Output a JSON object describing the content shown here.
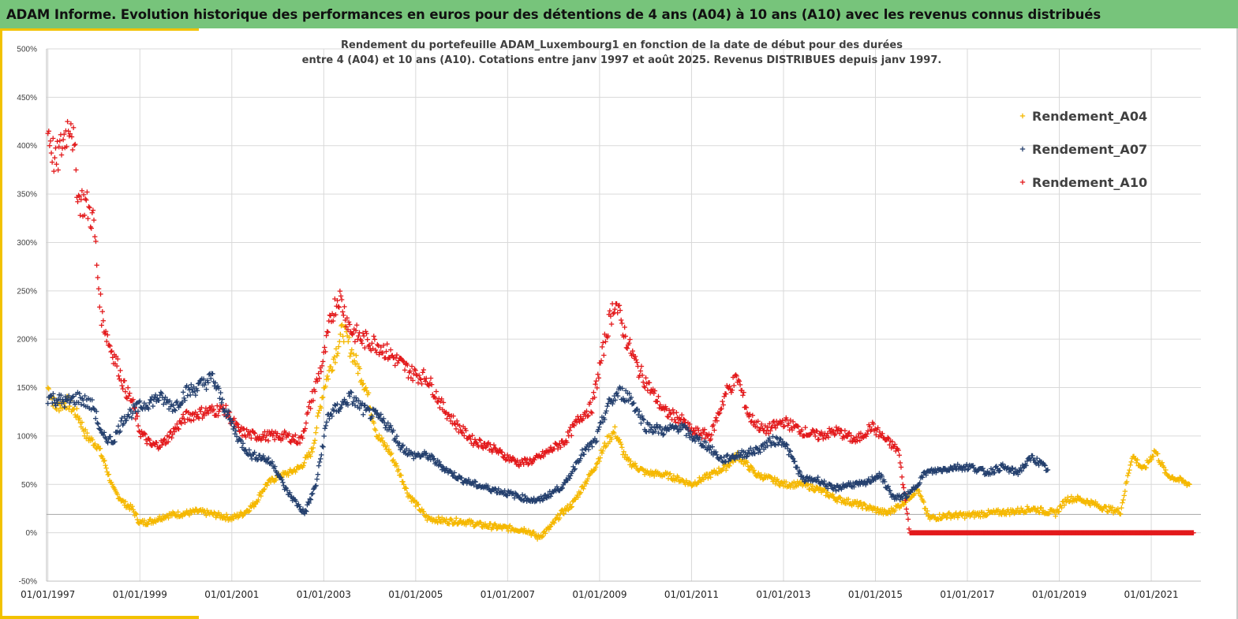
{
  "header": {
    "title": "ADAM Informe. Evolution historique des performances en euros pour des détentions de 4 ans (A04) à 10 ans (A10) avec les revenus connus distribués"
  },
  "colors": {
    "A04": "#f5b800",
    "A07": "#25406e",
    "A10": "#e31a1c",
    "banner": "#77c47b",
    "accent": "#f2c200"
  },
  "chart_data": {
    "type": "scatter",
    "title": "",
    "subtitle_lines": [
      "Rendement du portefeuille ADAM_Luxembourg1  en fonction de la date de début pour des durées",
      "entre 4 (A04) et 10 ans (A10). Cotations entre janv 1997 et août 2025. Revenus DISTRIBUES depuis janv 1997."
    ],
    "xlabel": "",
    "ylabel": "",
    "x_tick_labels": [
      "01/01/1997",
      "01/01/1999",
      "01/01/2001",
      "01/01/2003",
      "01/01/2005",
      "01/01/2007",
      "01/01/2009",
      "01/01/2011",
      "01/01/2013",
      "01/01/2015",
      "01/01/2017",
      "01/01/2019",
      "01/01/2021"
    ],
    "xlim": [
      "1997-01-01",
      "2022-01-01"
    ],
    "y_tick_labels": [
      "-50%",
      "0%",
      "50%",
      "100%",
      "150%",
      "200%",
      "250%",
      "300%",
      "350%",
      "400%",
      "450%",
      "500%"
    ],
    "ylim": [
      -50,
      500
    ],
    "y_unit": "%",
    "grid": true,
    "reference_line_y": 19,
    "legend_position": "top-right",
    "series": [
      {
        "name": "Rendement_A04",
        "color": "#f5b800",
        "points": [
          [
            "1997-01",
            150
          ],
          [
            "1997-03",
            130
          ],
          [
            "1997-06",
            135
          ],
          [
            "1997-09",
            120
          ],
          [
            "1997-11",
            100
          ],
          [
            "1998-02",
            90
          ],
          [
            "1998-04",
            70
          ],
          [
            "1998-06",
            45
          ],
          [
            "1998-09",
            30
          ],
          [
            "1998-11",
            25
          ],
          [
            "1999-01",
            10
          ],
          [
            "1999-04",
            12
          ],
          [
            "1999-08",
            18
          ],
          [
            "2000-01",
            20
          ],
          [
            "2000-04",
            22
          ],
          [
            "2000-07",
            20
          ],
          [
            "2001-01",
            15
          ],
          [
            "2001-04",
            20
          ],
          [
            "2001-07",
            30
          ],
          [
            "2001-10",
            50
          ],
          [
            "2002-01",
            58
          ],
          [
            "2002-04",
            62
          ],
          [
            "2002-07",
            68
          ],
          [
            "2002-10",
            85
          ],
          [
            "2003-01",
            150
          ],
          [
            "2003-04",
            185
          ],
          [
            "2003-06",
            210
          ],
          [
            "2003-09",
            180
          ],
          [
            "2003-12",
            150
          ],
          [
            "2004-03",
            100
          ],
          [
            "2004-06",
            85
          ],
          [
            "2004-09",
            60
          ],
          [
            "2004-11",
            40
          ],
          [
            "2005-01",
            30
          ],
          [
            "2005-04",
            15
          ],
          [
            "2005-09",
            12
          ],
          [
            "2006-01",
            12
          ],
          [
            "2006-06",
            8
          ],
          [
            "2006-12",
            5
          ],
          [
            "2007-06",
            3
          ],
          [
            "2007-09",
            -5
          ],
          [
            "2007-12",
            5
          ],
          [
            "2008-03",
            20
          ],
          [
            "2008-06",
            30
          ],
          [
            "2008-09",
            50
          ],
          [
            "2008-12",
            70
          ],
          [
            "2009-03",
            95
          ],
          [
            "2009-05",
            105
          ],
          [
            "2009-08",
            75
          ],
          [
            "2010-01",
            62
          ],
          [
            "2010-06",
            60
          ],
          [
            "2010-10",
            55
          ],
          [
            "2011-01",
            50
          ],
          [
            "2011-06",
            60
          ],
          [
            "2011-10",
            68
          ],
          [
            "2012-01",
            80
          ],
          [
            "2012-06",
            60
          ],
          [
            "2012-10",
            55
          ],
          [
            "2013-01",
            50
          ],
          [
            "2013-06",
            50
          ],
          [
            "2013-10",
            45
          ],
          [
            "2014-03",
            35
          ],
          [
            "2014-08",
            30
          ],
          [
            "2014-12",
            25
          ],
          [
            "2015-04",
            20
          ],
          [
            "2015-08",
            30
          ],
          [
            "2015-12",
            45
          ],
          [
            "2016-03",
            15
          ],
          [
            "2016-08",
            18
          ],
          [
            "2017-01",
            18
          ],
          [
            "2017-06",
            20
          ],
          [
            "2018-01",
            22
          ],
          [
            "2018-06",
            25
          ],
          [
            "2018-12",
            20
          ],
          [
            "2019-03",
            35
          ],
          [
            "2019-06",
            35
          ],
          [
            "2019-10",
            30
          ],
          [
            "2020-01",
            25
          ],
          [
            "2020-05",
            22
          ],
          [
            "2020-08",
            80
          ],
          [
            "2020-11",
            65
          ],
          [
            "2021-02",
            85
          ],
          [
            "2021-05",
            60
          ],
          [
            "2021-08",
            55
          ],
          [
            "2021-11",
            50
          ]
        ]
      },
      {
        "name": "Rendement_A07",
        "color": "#25406e",
        "points": [
          [
            "1997-01",
            140
          ],
          [
            "1997-06",
            135
          ],
          [
            "1997-09",
            140
          ],
          [
            "1998-01",
            130
          ],
          [
            "1998-03",
            100
          ],
          [
            "1998-06",
            95
          ],
          [
            "1998-09",
            120
          ],
          [
            "1999-01",
            130
          ],
          [
            "1999-06",
            140
          ],
          [
            "1999-10",
            130
          ],
          [
            "2000-01",
            145
          ],
          [
            "2000-04",
            150
          ],
          [
            "2000-08",
            160
          ],
          [
            "2000-11",
            130
          ],
          [
            "2001-03",
            95
          ],
          [
            "2001-06",
            80
          ],
          [
            "2001-09",
            78
          ],
          [
            "2001-12",
            70
          ],
          [
            "2002-03",
            45
          ],
          [
            "2002-06",
            30
          ],
          [
            "2002-08",
            20
          ],
          [
            "2002-11",
            50
          ],
          [
            "2003-02",
            120
          ],
          [
            "2003-05",
            130
          ],
          [
            "2003-08",
            140
          ],
          [
            "2003-12",
            125
          ],
          [
            "2004-03",
            120
          ],
          [
            "2004-06",
            110
          ],
          [
            "2004-09",
            90
          ],
          [
            "2004-12",
            80
          ],
          [
            "2005-04",
            80
          ],
          [
            "2005-09",
            65
          ],
          [
            "2006-01",
            55
          ],
          [
            "2006-06",
            48
          ],
          [
            "2006-12",
            42
          ],
          [
            "2007-06",
            35
          ],
          [
            "2007-09",
            33
          ],
          [
            "2007-12",
            40
          ],
          [
            "2008-04",
            50
          ],
          [
            "2008-08",
            80
          ],
          [
            "2008-12",
            95
          ],
          [
            "2009-03",
            130
          ],
          [
            "2009-06",
            145
          ],
          [
            "2009-09",
            140
          ],
          [
            "2010-01",
            110
          ],
          [
            "2010-06",
            105
          ],
          [
            "2010-10",
            110
          ],
          [
            "2011-01",
            100
          ],
          [
            "2011-05",
            90
          ],
          [
            "2011-09",
            75
          ],
          [
            "2012-01",
            80
          ],
          [
            "2012-06",
            85
          ],
          [
            "2012-10",
            95
          ],
          [
            "2013-01",
            95
          ],
          [
            "2013-06",
            55
          ],
          [
            "2013-10",
            55
          ],
          [
            "2014-02",
            45
          ],
          [
            "2014-06",
            50
          ],
          [
            "2014-10",
            50
          ],
          [
            "2015-02",
            60
          ],
          [
            "2015-06",
            35
          ],
          [
            "2015-10",
            40
          ],
          [
            "2016-02",
            62
          ],
          [
            "2016-06",
            65
          ],
          [
            "2016-10",
            68
          ],
          [
            "2017-02",
            68
          ],
          [
            "2017-06",
            62
          ],
          [
            "2017-10",
            68
          ],
          [
            "2018-02",
            62
          ],
          [
            "2018-06",
            78
          ],
          [
            "2018-10",
            65
          ]
        ]
      },
      {
        "name": "Rendement_A10",
        "color": "#e31a1c",
        "points": [
          [
            "1997-01",
            418
          ],
          [
            "1997-03",
            380
          ],
          [
            "1997-05",
            405
          ],
          [
            "1997-07",
            430
          ],
          [
            "1997-09",
            345
          ],
          [
            "1997-11",
            340
          ],
          [
            "1998-01",
            320
          ],
          [
            "1998-02",
            265
          ],
          [
            "1998-03",
            225
          ],
          [
            "1998-05",
            195
          ],
          [
            "1998-07",
            175
          ],
          [
            "1998-09",
            150
          ],
          [
            "1998-11",
            135
          ],
          [
            "1999-01",
            105
          ],
          [
            "1999-04",
            90
          ],
          [
            "1999-07",
            92
          ],
          [
            "2000-01",
            120
          ],
          [
            "2000-06",
            125
          ],
          [
            "2000-11",
            128
          ],
          [
            "2001-03",
            105
          ],
          [
            "2001-07",
            100
          ],
          [
            "2001-11",
            100
          ],
          [
            "2002-03",
            100
          ],
          [
            "2002-07",
            95
          ],
          [
            "2002-10",
            140
          ],
          [
            "2003-01",
            180
          ],
          [
            "2003-03",
            225
          ],
          [
            "2003-05",
            245
          ],
          [
            "2003-08",
            210
          ],
          [
            "2003-11",
            200
          ],
          [
            "2004-03",
            195
          ],
          [
            "2004-06",
            185
          ],
          [
            "2004-09",
            175
          ],
          [
            "2004-12",
            165
          ],
          [
            "2005-04",
            160
          ],
          [
            "2005-08",
            130
          ],
          [
            "2005-12",
            110
          ],
          [
            "2006-04",
            95
          ],
          [
            "2006-08",
            90
          ],
          [
            "2006-12",
            80
          ],
          [
            "2007-04",
            72
          ],
          [
            "2007-08",
            75
          ],
          [
            "2007-12",
            85
          ],
          [
            "2008-04",
            95
          ],
          [
            "2008-08",
            120
          ],
          [
            "2008-11",
            130
          ],
          [
            "2009-01",
            170
          ],
          [
            "2009-03",
            210
          ],
          [
            "2009-05",
            240
          ],
          [
            "2009-08",
            200
          ],
          [
            "2009-11",
            170
          ],
          [
            "2010-02",
            150
          ],
          [
            "2010-06",
            125
          ],
          [
            "2010-10",
            118
          ],
          [
            "2011-01",
            105
          ],
          [
            "2011-06",
            100
          ],
          [
            "2011-10",
            145
          ],
          [
            "2012-01",
            160
          ],
          [
            "2012-04",
            120
          ],
          [
            "2012-08",
            105
          ],
          [
            "2013-01",
            115
          ],
          [
            "2013-06",
            105
          ],
          [
            "2013-10",
            100
          ],
          [
            "2014-03",
            105
          ],
          [
            "2014-08",
            95
          ],
          [
            "2014-12",
            110
          ],
          [
            "2015-04",
            95
          ],
          [
            "2015-07",
            85
          ],
          [
            "2015-10",
            0
          ],
          [
            "2017-01",
            0
          ],
          [
            "2018-01",
            0
          ],
          [
            "2019-01",
            0
          ],
          [
            "2020-01",
            0
          ],
          [
            "2021-01",
            0
          ],
          [
            "2021-12",
            0
          ]
        ]
      }
    ]
  }
}
